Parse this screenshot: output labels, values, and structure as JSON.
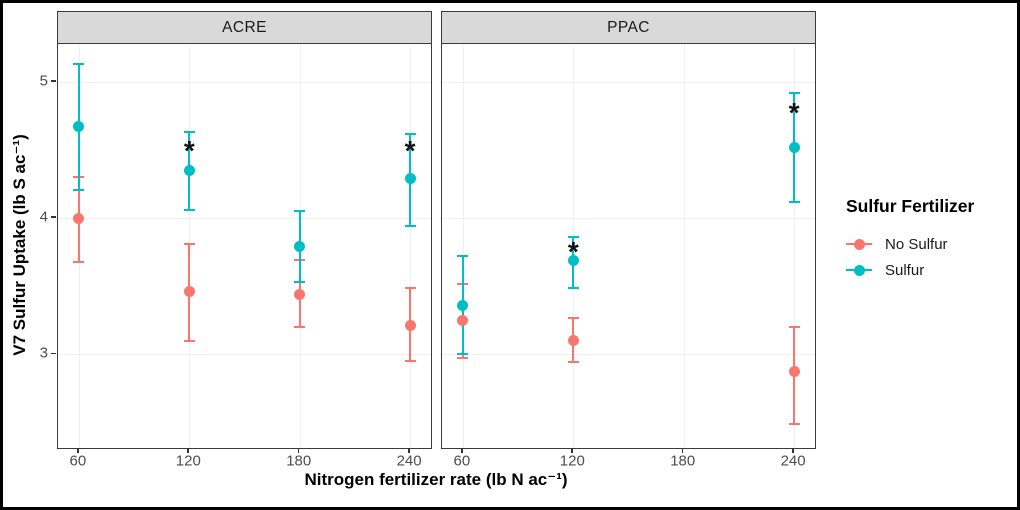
{
  "chart_data": {
    "type": "scatter",
    "subtype": "pointrange-with-errorbars",
    "xlabel": "Nitrogen fertilizer rate (lb N ac⁻¹)",
    "ylabel": "V7 Sulfur Uptake (lb S ac⁻¹)",
    "x_ticks": [
      60,
      120,
      180,
      240
    ],
    "y_ticks": [
      5,
      4,
      3
    ],
    "ylim_shown": [
      2.31,
      5.28
    ],
    "grid": "faint major gridlines on",
    "legend_position": "right",
    "facets": [
      {
        "name": "ACRE",
        "series": [
          {
            "name": "No Sulfur",
            "color": "#F8766D",
            "points": [
              {
                "x": 60,
                "y": 4.0,
                "lo": 3.68,
                "hi": 4.3
              },
              {
                "x": 120,
                "y": 3.46,
                "lo": 3.1,
                "hi": 3.81
              },
              {
                "x": 180,
                "y": 3.44,
                "lo": 3.2,
                "hi": 3.69
              },
              {
                "x": 240,
                "y": 3.21,
                "lo": 2.95,
                "hi": 3.49
              }
            ]
          },
          {
            "name": "Sulfur",
            "color": "#00BFC4",
            "points": [
              {
                "x": 60,
                "y": 4.67,
                "lo": 4.21,
                "hi": 5.13
              },
              {
                "x": 120,
                "y": 4.35,
                "lo": 4.06,
                "hi": 4.63
              },
              {
                "x": 180,
                "y": 3.79,
                "lo": 3.53,
                "hi": 4.05
              },
              {
                "x": 240,
                "y": 4.29,
                "lo": 3.94,
                "hi": 4.62
              }
            ]
          }
        ],
        "significance_marks": [
          {
            "x": 120,
            "y": 4.84,
            "symbol": "*"
          },
          {
            "x": 240,
            "y": 4.84,
            "symbol": "*"
          }
        ]
      },
      {
        "name": "PPAC",
        "series": [
          {
            "name": "No Sulfur",
            "color": "#F8766D",
            "points": [
              {
                "x": 60,
                "y": 3.25,
                "lo": 2.97,
                "hi": 3.52
              },
              {
                "x": 120,
                "y": 3.1,
                "lo": 2.94,
                "hi": 3.27
              },
              {
                "x": 240,
                "y": 2.87,
                "lo": 2.49,
                "hi": 3.2
              }
            ]
          },
          {
            "name": "Sulfur",
            "color": "#00BFC4",
            "points": [
              {
                "x": 60,
                "y": 3.36,
                "lo": 3.0,
                "hi": 3.72
              },
              {
                "x": 120,
                "y": 3.69,
                "lo": 3.49,
                "hi": 3.86
              },
              {
                "x": 240,
                "y": 4.52,
                "lo": 4.12,
                "hi": 4.92
              }
            ]
          }
        ],
        "significance_marks": [
          {
            "x": 120,
            "y": 4.1,
            "symbol": "*"
          },
          {
            "x": 240,
            "y": 5.12,
            "symbol": "*"
          }
        ]
      }
    ]
  },
  "legend": {
    "title": "Sulfur Fertilizer",
    "items": [
      {
        "label": "No Sulfur",
        "color": "#F8766D"
      },
      {
        "label": "Sulfur",
        "color": "#00BFC4"
      }
    ]
  },
  "colors": {
    "strip_bg": "#D9D9D9",
    "panel_border": "#3b3b3b",
    "gridline": "#f0f0f0",
    "tick_label": "#4d4d4d",
    "no_sulfur": "#F8766D",
    "sulfur": "#00BFC4"
  }
}
